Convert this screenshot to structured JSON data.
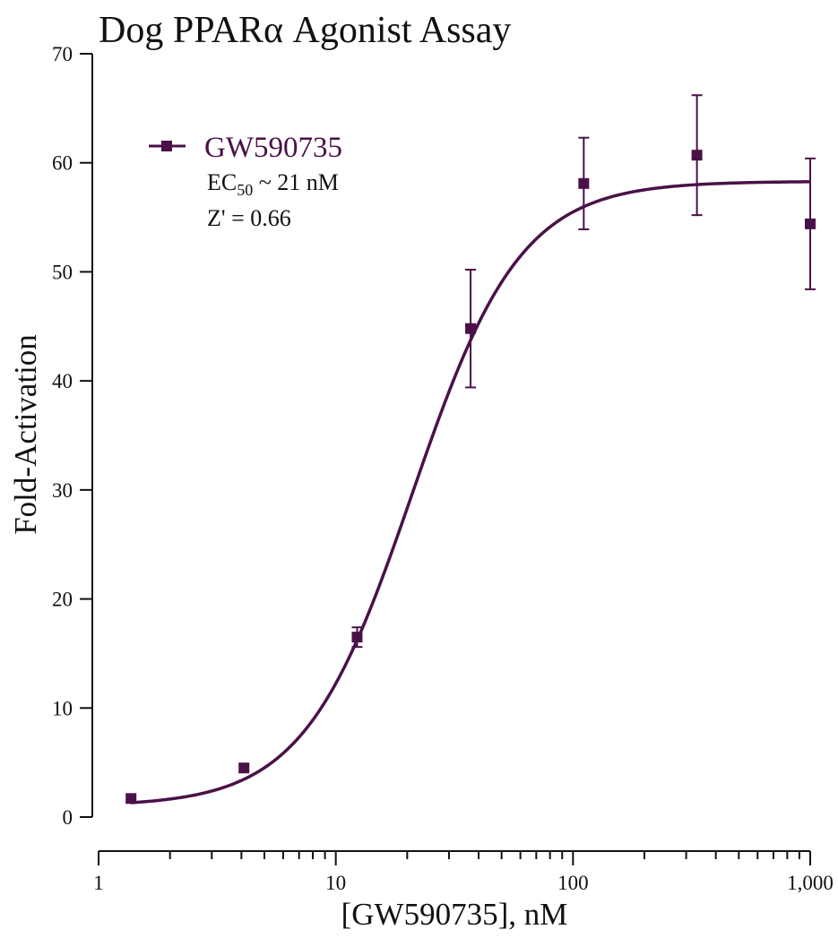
{
  "chart_data": {
    "type": "scatter",
    "title": "Dog PPARα Agonist Assay",
    "xlabel": "[GW590735], nM",
    "ylabel": "Fold-Activation",
    "xscale": "log",
    "xlim": [
      1,
      1000
    ],
    "ylim": [
      0,
      70
    ],
    "x_ticks": [
      1,
      10,
      100,
      1000
    ],
    "x_tick_labels": [
      "1",
      "10",
      "100",
      "1,000"
    ],
    "y_ticks": [
      0,
      10,
      20,
      30,
      40,
      50,
      60,
      70
    ],
    "y_tick_labels": [
      "0",
      "10",
      "20",
      "30",
      "40",
      "50",
      "60",
      "70"
    ],
    "grid": false,
    "legend_position": "top-left",
    "series": [
      {
        "name": "GW590735",
        "color": "#4a1148",
        "marker": "square",
        "points": [
          {
            "x": 1.37,
            "y": 1.7,
            "err": 0
          },
          {
            "x": 4.1,
            "y": 4.5,
            "err": 0
          },
          {
            "x": 12.3,
            "y": 16.5,
            "err": 0.9
          },
          {
            "x": 37,
            "y": 44.8,
            "err": 5.4
          },
          {
            "x": 111,
            "y": 58.1,
            "err": 4.2
          },
          {
            "x": 333,
            "y": 60.7,
            "err": 5.5
          },
          {
            "x": 1000,
            "y": 54.4,
            "err": 6.0
          }
        ],
        "fit": {
          "model": "sigmoidal dose-response",
          "bottom": 1.0,
          "top": 58.3,
          "ec50": 21,
          "hill": 1.9
        }
      }
    ],
    "annotations": {
      "ec50_prefix": "EC",
      "ec50_sub": "50",
      "ec50_suffix": " ~ 21 nM",
      "z_prime": "Z' = 0.66"
    }
  }
}
